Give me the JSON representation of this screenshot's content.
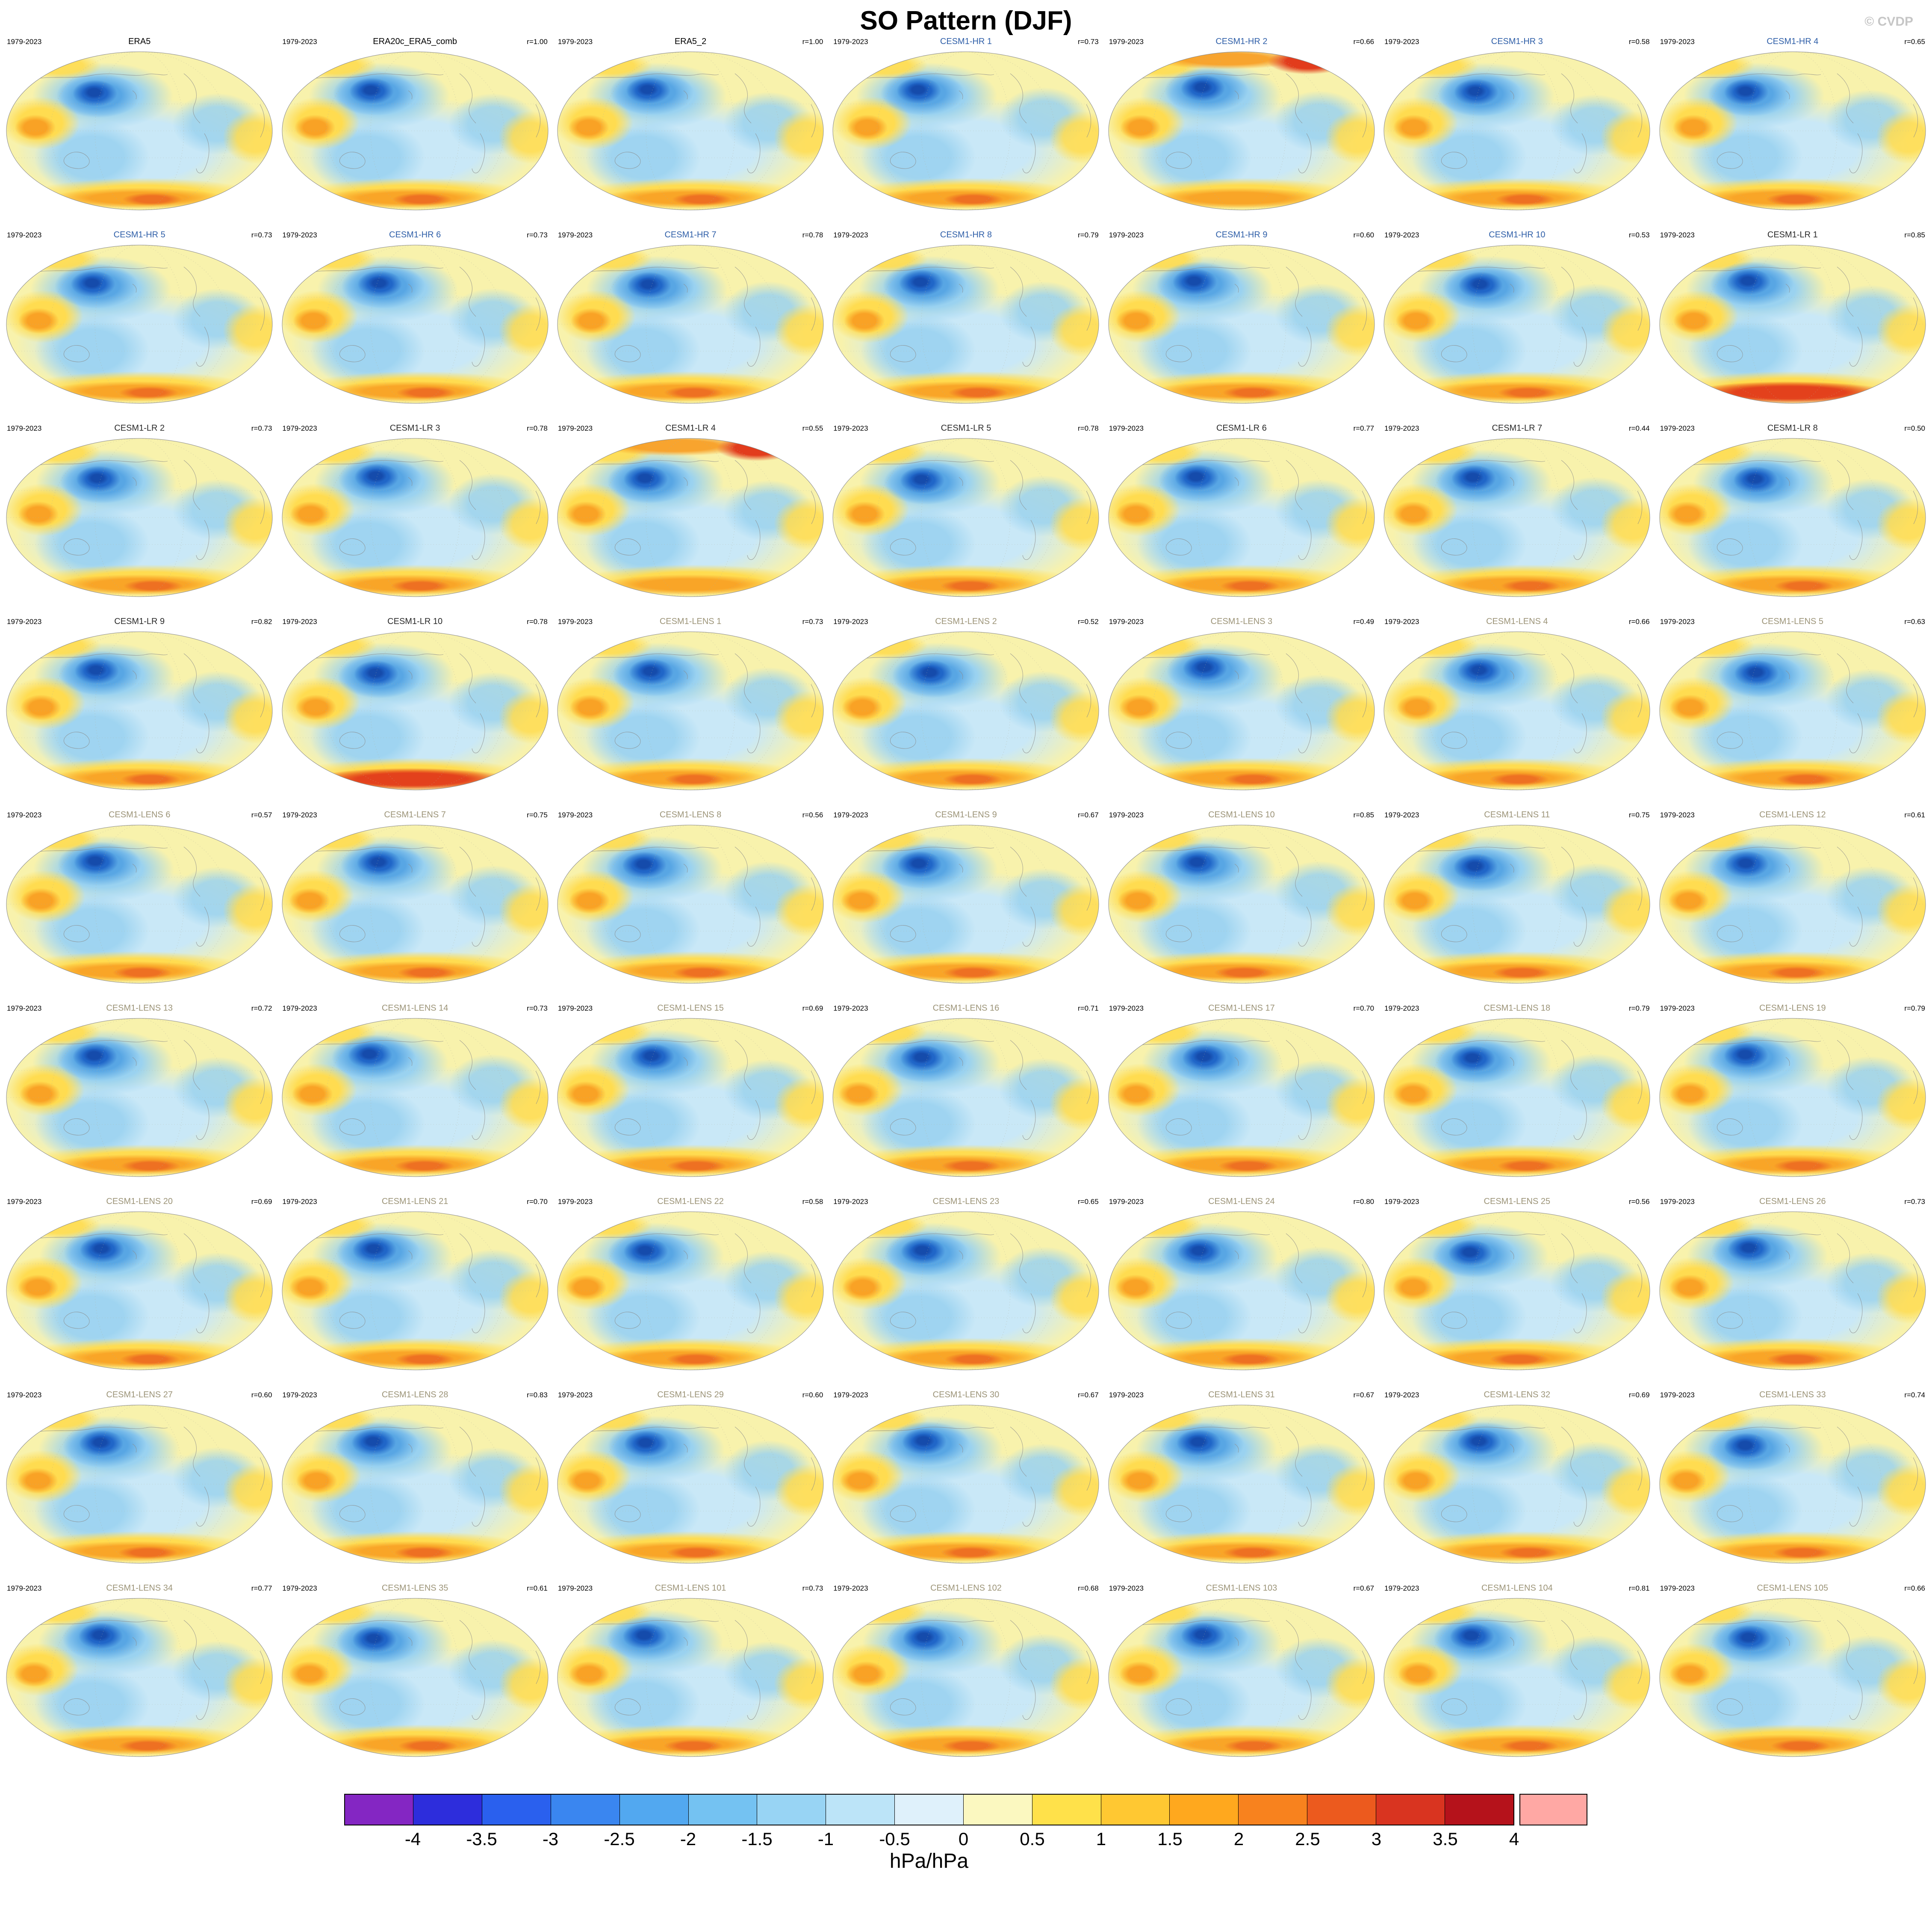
{
  "page": {
    "watermark": "© CVDP"
  },
  "chart_data": {
    "type": "heatmap",
    "title": "SO Pattern (DJF)",
    "subtitle": "",
    "period": "1979-2023",
    "projection": "global (Pacific-centered, Winkel/Robinson-style oval)",
    "colorbar": {
      "units": "hPa/hPa",
      "tick_labels": [
        "-4",
        "-3.5",
        "-3",
        "-2.5",
        "-2",
        "-1.5",
        "-1",
        "-0.5",
        "0",
        "0.5",
        "1",
        "1.5",
        "2",
        "2.5",
        "3",
        "3.5",
        "4"
      ],
      "segment_colors": [
        "#8426C3",
        "#2D2DDC",
        "#2A60EE",
        "#3A86F0",
        "#52A8F0",
        "#74C2F2",
        "#98D4F4",
        "#BCE4F8",
        "#DFF1FB",
        "#FBF8C0",
        "#FFE14A",
        "#FFC832",
        "#FFA81E",
        "#F8821E",
        "#EC5A1E",
        "#D93420",
        "#B5121B"
      ],
      "over_color": "#FFA8A4"
    },
    "group_colors": {
      "era": "#000000",
      "hr": "#2F5FA8",
      "lr": "#2A2A2A",
      "lens": "#9C9478"
    },
    "panels": [
      {
        "title": "ERA5",
        "group": "era",
        "r": ""
      },
      {
        "title": "ERA20c_ERA5_comb",
        "group": "era",
        "r": "r=1.00"
      },
      {
        "title": "ERA5_2",
        "group": "era",
        "r": "r=1.00"
      },
      {
        "title": "CESM1-HR 1",
        "group": "hr",
        "r": "r=0.73"
      },
      {
        "title": "CESM1-HR 2",
        "group": "hr",
        "r": "r=0.66",
        "variant": "hot_north"
      },
      {
        "title": "CESM1-HR 3",
        "group": "hr",
        "r": "r=0.58"
      },
      {
        "title": "CESM1-HR 4",
        "group": "hr",
        "r": "r=0.65"
      },
      {
        "title": "CESM1-HR 5",
        "group": "hr",
        "r": "r=0.73"
      },
      {
        "title": "CESM1-HR 6",
        "group": "hr",
        "r": "r=0.73"
      },
      {
        "title": "CESM1-HR 7",
        "group": "hr",
        "r": "r=0.78"
      },
      {
        "title": "CESM1-HR 8",
        "group": "hr",
        "r": "r=0.79"
      },
      {
        "title": "CESM1-HR 9",
        "group": "hr",
        "r": "r=0.60"
      },
      {
        "title": "CESM1-HR 10",
        "group": "hr",
        "r": "r=0.53"
      },
      {
        "title": "CESM1-LR 1",
        "group": "lr",
        "r": "r=0.85",
        "variant": "hot_south"
      },
      {
        "title": "CESM1-LR 2",
        "group": "lr",
        "r": "r=0.73"
      },
      {
        "title": "CESM1-LR 3",
        "group": "lr",
        "r": "r=0.78"
      },
      {
        "title": "CESM1-LR 4",
        "group": "lr",
        "r": "r=0.55",
        "variant": "hot_north"
      },
      {
        "title": "CESM1-LR 5",
        "group": "lr",
        "r": "r=0.78"
      },
      {
        "title": "CESM1-LR 6",
        "group": "lr",
        "r": "r=0.77"
      },
      {
        "title": "CESM1-LR 7",
        "group": "lr",
        "r": "r=0.44"
      },
      {
        "title": "CESM1-LR 8",
        "group": "lr",
        "r": "r=0.50"
      },
      {
        "title": "CESM1-LR 9",
        "group": "lr",
        "r": "r=0.82"
      },
      {
        "title": "CESM1-LR 10",
        "group": "lr",
        "r": "r=0.78",
        "variant": "hot_south"
      },
      {
        "title": "CESM1-LENS 1",
        "group": "lens",
        "r": "r=0.73"
      },
      {
        "title": "CESM1-LENS 2",
        "group": "lens",
        "r": "r=0.52"
      },
      {
        "title": "CESM1-LENS 3",
        "group": "lens",
        "r": "r=0.49"
      },
      {
        "title": "CESM1-LENS 4",
        "group": "lens",
        "r": "r=0.66"
      },
      {
        "title": "CESM1-LENS 5",
        "group": "lens",
        "r": "r=0.63"
      },
      {
        "title": "CESM1-LENS 6",
        "group": "lens",
        "r": "r=0.57"
      },
      {
        "title": "CESM1-LENS 7",
        "group": "lens",
        "r": "r=0.75"
      },
      {
        "title": "CESM1-LENS 8",
        "group": "lens",
        "r": "r=0.56"
      },
      {
        "title": "CESM1-LENS 9",
        "group": "lens",
        "r": "r=0.67"
      },
      {
        "title": "CESM1-LENS 10",
        "group": "lens",
        "r": "r=0.85"
      },
      {
        "title": "CESM1-LENS 11",
        "group": "lens",
        "r": "r=0.75"
      },
      {
        "title": "CESM1-LENS 12",
        "group": "lens",
        "r": "r=0.61"
      },
      {
        "title": "CESM1-LENS 13",
        "group": "lens",
        "r": "r=0.72"
      },
      {
        "title": "CESM1-LENS 14",
        "group": "lens",
        "r": "r=0.73"
      },
      {
        "title": "CESM1-LENS 15",
        "group": "lens",
        "r": "r=0.69"
      },
      {
        "title": "CESM1-LENS 16",
        "group": "lens",
        "r": "r=0.71"
      },
      {
        "title": "CESM1-LENS 17",
        "group": "lens",
        "r": "r=0.70"
      },
      {
        "title": "CESM1-LENS 18",
        "group": "lens",
        "r": "r=0.79"
      },
      {
        "title": "CESM1-LENS 19",
        "group": "lens",
        "r": "r=0.79"
      },
      {
        "title": "CESM1-LENS 20",
        "group": "lens",
        "r": "r=0.69"
      },
      {
        "title": "CESM1-LENS 21",
        "group": "lens",
        "r": "r=0.70"
      },
      {
        "title": "CESM1-LENS 22",
        "group": "lens",
        "r": "r=0.58"
      },
      {
        "title": "CESM1-LENS 23",
        "group": "lens",
        "r": "r=0.65"
      },
      {
        "title": "CESM1-LENS 24",
        "group": "lens",
        "r": "r=0.80"
      },
      {
        "title": "CESM1-LENS 25",
        "group": "lens",
        "r": "r=0.56"
      },
      {
        "title": "CESM1-LENS 26",
        "group": "lens",
        "r": "r=0.73"
      },
      {
        "title": "CESM1-LENS 27",
        "group": "lens",
        "r": "r=0.60"
      },
      {
        "title": "CESM1-LENS 28",
        "group": "lens",
        "r": "r=0.83"
      },
      {
        "title": "CESM1-LENS 29",
        "group": "lens",
        "r": "r=0.60"
      },
      {
        "title": "CESM1-LENS 30",
        "group": "lens",
        "r": "r=0.67"
      },
      {
        "title": "CESM1-LENS 31",
        "group": "lens",
        "r": "r=0.67"
      },
      {
        "title": "CESM1-LENS 32",
        "group": "lens",
        "r": "r=0.69"
      },
      {
        "title": "CESM1-LENS 33",
        "group": "lens",
        "r": "r=0.74"
      },
      {
        "title": "CESM1-LENS 34",
        "group": "lens",
        "r": "r=0.77"
      },
      {
        "title": "CESM1-LENS 35",
        "group": "lens",
        "r": "r=0.61"
      },
      {
        "title": "CESM1-LENS 101",
        "group": "lens",
        "r": "r=0.73"
      },
      {
        "title": "CESM1-LENS 102",
        "group": "lens",
        "r": "r=0.68"
      },
      {
        "title": "CESM1-LENS 103",
        "group": "lens",
        "r": "r=0.67"
      },
      {
        "title": "CESM1-LENS 104",
        "group": "lens",
        "r": "r=0.81"
      },
      {
        "title": "CESM1-LENS 105",
        "group": "lens",
        "r": "r=0.66"
      }
    ]
  }
}
